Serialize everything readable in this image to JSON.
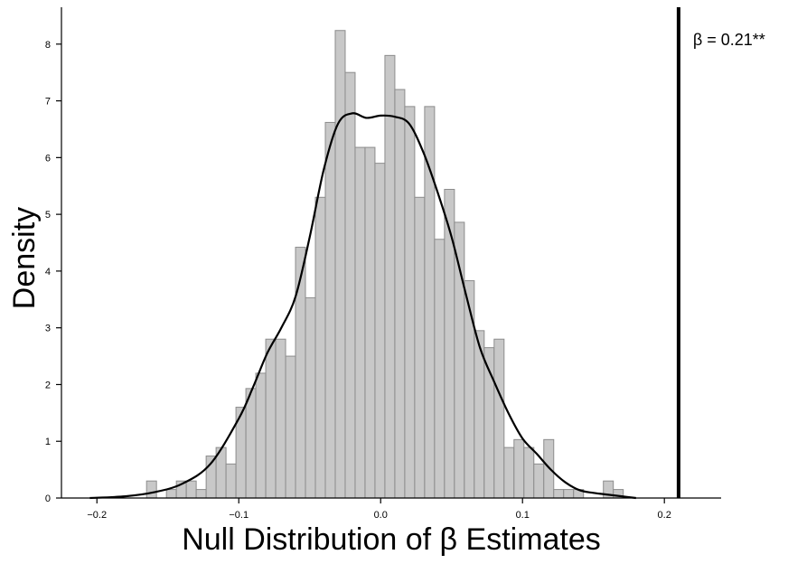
{
  "chart_data": {
    "type": "bar",
    "subtype": "histogram-with-density",
    "title": "",
    "xlabel": "Null Distribution of β Estimates",
    "ylabel": "Density",
    "xlim": [
      -0.225,
      0.24
    ],
    "ylim": [
      0,
      8.65
    ],
    "xticks": [
      -0.2,
      -0.1,
      0.0,
      0.1,
      0.2
    ],
    "xtick_labels": [
      "−0.2",
      "−0.1",
      "0.0",
      "0.1",
      "0.2"
    ],
    "yticks": [
      0,
      1,
      2,
      3,
      4,
      5,
      6,
      7,
      8
    ],
    "ytick_labels": [
      "0",
      "1",
      "2",
      "3",
      "4",
      "5",
      "6",
      "7",
      "8"
    ],
    "grid": false,
    "bin_width": 0.007,
    "bins": [
      {
        "x": -0.1615,
        "y": 0.3
      },
      {
        "x": -0.1475,
        "y": 0.15
      },
      {
        "x": -0.1405,
        "y": 0.3
      },
      {
        "x": -0.1335,
        "y": 0.3
      },
      {
        "x": -0.1265,
        "y": 0.15
      },
      {
        "x": -0.1195,
        "y": 0.74
      },
      {
        "x": -0.1125,
        "y": 0.89
      },
      {
        "x": -0.1055,
        "y": 0.6
      },
      {
        "x": -0.0985,
        "y": 1.6
      },
      {
        "x": -0.0915,
        "y": 1.93
      },
      {
        "x": -0.0845,
        "y": 2.2
      },
      {
        "x": -0.0775,
        "y": 2.8
      },
      {
        "x": -0.0705,
        "y": 2.8
      },
      {
        "x": -0.0635,
        "y": 2.5
      },
      {
        "x": -0.0565,
        "y": 4.42
      },
      {
        "x": -0.0495,
        "y": 3.53
      },
      {
        "x": -0.0425,
        "y": 5.3
      },
      {
        "x": -0.0355,
        "y": 6.62
      },
      {
        "x": -0.0285,
        "y": 8.24
      },
      {
        "x": -0.0215,
        "y": 7.5
      },
      {
        "x": -0.0145,
        "y": 6.18
      },
      {
        "x": -0.0075,
        "y": 6.18
      },
      {
        "x": -0.0005,
        "y": 5.9
      },
      {
        "x": 0.0065,
        "y": 7.8
      },
      {
        "x": 0.0135,
        "y": 7.2
      },
      {
        "x": 0.0205,
        "y": 6.9
      },
      {
        "x": 0.0275,
        "y": 5.3
      },
      {
        "x": 0.0345,
        "y": 6.9
      },
      {
        "x": 0.0415,
        "y": 4.56
      },
      {
        "x": 0.0485,
        "y": 5.44
      },
      {
        "x": 0.0555,
        "y": 4.86
      },
      {
        "x": 0.0625,
        "y": 3.83
      },
      {
        "x": 0.0695,
        "y": 2.95
      },
      {
        "x": 0.0765,
        "y": 2.65
      },
      {
        "x": 0.0835,
        "y": 2.8
      },
      {
        "x": 0.0905,
        "y": 0.89
      },
      {
        "x": 0.0975,
        "y": 1.03
      },
      {
        "x": 0.1045,
        "y": 0.89
      },
      {
        "x": 0.1115,
        "y": 0.6
      },
      {
        "x": 0.1185,
        "y": 1.03
      },
      {
        "x": 0.1255,
        "y": 0.15
      },
      {
        "x": 0.1325,
        "y": 0.15
      },
      {
        "x": 0.1395,
        "y": 0.15
      },
      {
        "x": 0.1605,
        "y": 0.3
      },
      {
        "x": 0.1675,
        "y": 0.15
      }
    ],
    "density_curve": [
      [
        -0.205,
        0.0
      ],
      [
        -0.18,
        0.03
      ],
      [
        -0.16,
        0.1
      ],
      [
        -0.14,
        0.25
      ],
      [
        -0.12,
        0.6
      ],
      [
        -0.1,
        1.4
      ],
      [
        -0.09,
        1.95
      ],
      [
        -0.08,
        2.55
      ],
      [
        -0.07,
        3.0
      ],
      [
        -0.06,
        3.55
      ],
      [
        -0.05,
        4.6
      ],
      [
        -0.04,
        5.8
      ],
      [
        -0.03,
        6.6
      ],
      [
        -0.02,
        6.78
      ],
      [
        -0.01,
        6.7
      ],
      [
        0.0,
        6.74
      ],
      [
        0.01,
        6.72
      ],
      [
        0.02,
        6.6
      ],
      [
        0.03,
        6.1
      ],
      [
        0.04,
        5.4
      ],
      [
        0.05,
        4.6
      ],
      [
        0.06,
        3.6
      ],
      [
        0.07,
        2.65
      ],
      [
        0.08,
        2.05
      ],
      [
        0.09,
        1.5
      ],
      [
        0.1,
        1.05
      ],
      [
        0.11,
        0.78
      ],
      [
        0.12,
        0.5
      ],
      [
        0.13,
        0.28
      ],
      [
        0.14,
        0.14
      ],
      [
        0.15,
        0.09
      ],
      [
        0.16,
        0.06
      ],
      [
        0.17,
        0.03
      ],
      [
        0.18,
        0.0
      ]
    ],
    "reference_line": {
      "x": 0.21,
      "label": "β = 0.21**"
    },
    "colors": {
      "bar_fill": "#c8c8c8",
      "bar_edge": "#8c8c8c",
      "curve": "#000000",
      "reference_line": "#000000"
    }
  }
}
